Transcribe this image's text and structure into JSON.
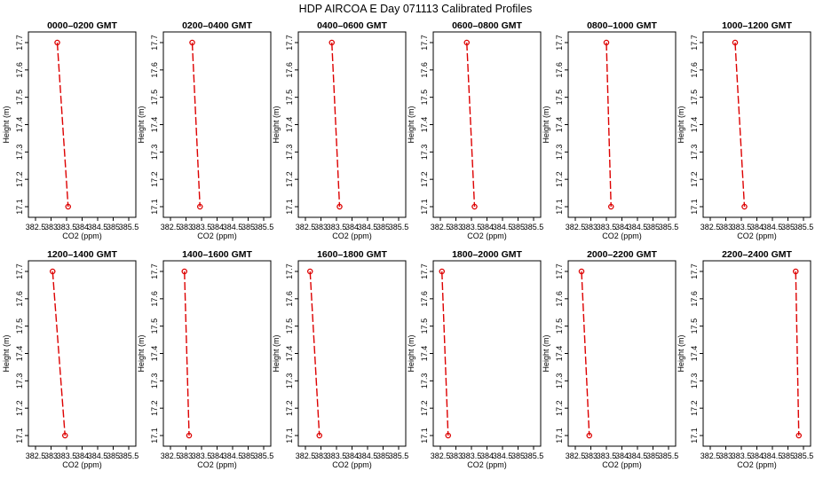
{
  "title": "HDP  AIRCOA E  Day 071113  Calibrated Profiles",
  "colors": {
    "series": "#dd0000",
    "frame": "#000000"
  },
  "chart_data": {
    "type": "line",
    "xlabel": "CO2 (ppm)",
    "ylabel": "Height (m)",
    "xlim": [
      382.5,
      385.5
    ],
    "ylim": [
      17.1,
      17.7
    ],
    "xticks": [
      382.5,
      383.5,
      384.5,
      385.5
    ],
    "xtick_labels": [
      "382.5",
      "383",
      "383.5",
      "384",
      "384.5",
      "385",
      "385.5"
    ],
    "xtick_values": [
      382.5,
      383,
      383.5,
      384,
      384.5,
      385,
      385.5
    ],
    "ytick_labels": [
      "17.1",
      "17.2",
      "17.3",
      "17.4",
      "17.5",
      "17.6",
      "17.7"
    ],
    "ytick_values": [
      17.1,
      17.2,
      17.3,
      17.4,
      17.5,
      17.6,
      17.7
    ],
    "grid": false,
    "panels": [
      {
        "title": "0000–0200 GMT",
        "points": [
          {
            "x": 383.2,
            "y": 17.7
          },
          {
            "x": 383.55,
            "y": 17.1
          }
        ]
      },
      {
        "title": "0200–0400 GMT",
        "points": [
          {
            "x": 383.2,
            "y": 17.7
          },
          {
            "x": 383.45,
            "y": 17.1
          }
        ]
      },
      {
        "title": "0400–0600 GMT",
        "points": [
          {
            "x": 383.35,
            "y": 17.7
          },
          {
            "x": 383.6,
            "y": 17.1
          }
        ]
      },
      {
        "title": "0600–0800 GMT",
        "points": [
          {
            "x": 383.35,
            "y": 17.7
          },
          {
            "x": 383.6,
            "y": 17.1
          }
        ]
      },
      {
        "title": "0800–1000 GMT",
        "points": [
          {
            "x": 383.5,
            "y": 17.7
          },
          {
            "x": 383.65,
            "y": 17.1
          }
        ]
      },
      {
        "title": "1000–1200 GMT",
        "points": [
          {
            "x": 383.3,
            "y": 17.7
          },
          {
            "x": 383.6,
            "y": 17.1
          }
        ]
      },
      {
        "title": "1200–1400 GMT",
        "points": [
          {
            "x": 383.05,
            "y": 17.7
          },
          {
            "x": 383.45,
            "y": 17.1
          }
        ]
      },
      {
        "title": "1400–1600 GMT",
        "points": [
          {
            "x": 382.95,
            "y": 17.7
          },
          {
            "x": 383.1,
            "y": 17.1
          }
        ]
      },
      {
        "title": "1600–1800 GMT",
        "points": [
          {
            "x": 382.65,
            "y": 17.7
          },
          {
            "x": 382.95,
            "y": 17.1
          }
        ]
      },
      {
        "title": "1800–2000 GMT",
        "points": [
          {
            "x": 382.55,
            "y": 17.7
          },
          {
            "x": 382.75,
            "y": 17.1
          }
        ]
      },
      {
        "title": "2000–2200 GMT",
        "points": [
          {
            "x": 382.7,
            "y": 17.7
          },
          {
            "x": 382.95,
            "y": 17.1
          }
        ]
      },
      {
        "title": "2200–2400 GMT",
        "points": [
          {
            "x": 385.25,
            "y": 17.7
          },
          {
            "x": 385.35,
            "y": 17.1
          }
        ]
      }
    ]
  }
}
